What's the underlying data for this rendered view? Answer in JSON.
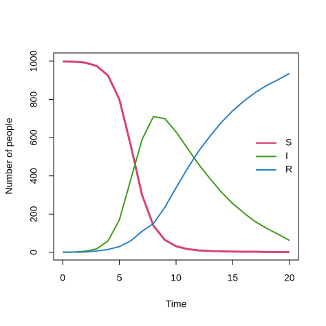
{
  "chart_data": {
    "type": "line",
    "x_label": "Time",
    "y_label": "Number of people",
    "x": [
      0,
      1,
      2,
      3,
      4,
      5,
      6,
      7,
      8,
      9,
      10,
      11,
      12,
      13,
      14,
      15,
      16,
      17,
      18,
      19,
      20
    ],
    "series": [
      {
        "name": "S",
        "color": "#d6456e",
        "values": [
          999,
          997,
          992,
          975,
          925,
          800,
          560,
          300,
          140,
          65,
          32,
          17,
          10,
          7,
          5,
          4,
          3,
          3,
          2,
          2,
          2
        ]
      },
      {
        "name": "I",
        "color": "#3f9a1a",
        "values": [
          1,
          2,
          6,
          18,
          60,
          170,
          380,
          590,
          710,
          700,
          630,
          545,
          460,
          385,
          315,
          255,
          205,
          160,
          125,
          95,
          62
        ]
      },
      {
        "name": "R",
        "color": "#2a80c6",
        "values": [
          0,
          1,
          2,
          7,
          15,
          30,
          60,
          110,
          150,
          235,
          338,
          438,
          530,
          608,
          680,
          741,
          792,
          837,
          873,
          903,
          936
        ]
      }
    ],
    "xlim": [
      -0.8,
      20.8
    ],
    "ylim": [
      -40,
      1043
    ],
    "xticks": [
      0,
      5,
      10,
      15,
      20
    ],
    "yticks": [
      0,
      200,
      400,
      600,
      800,
      1000
    ],
    "legend": "right"
  }
}
